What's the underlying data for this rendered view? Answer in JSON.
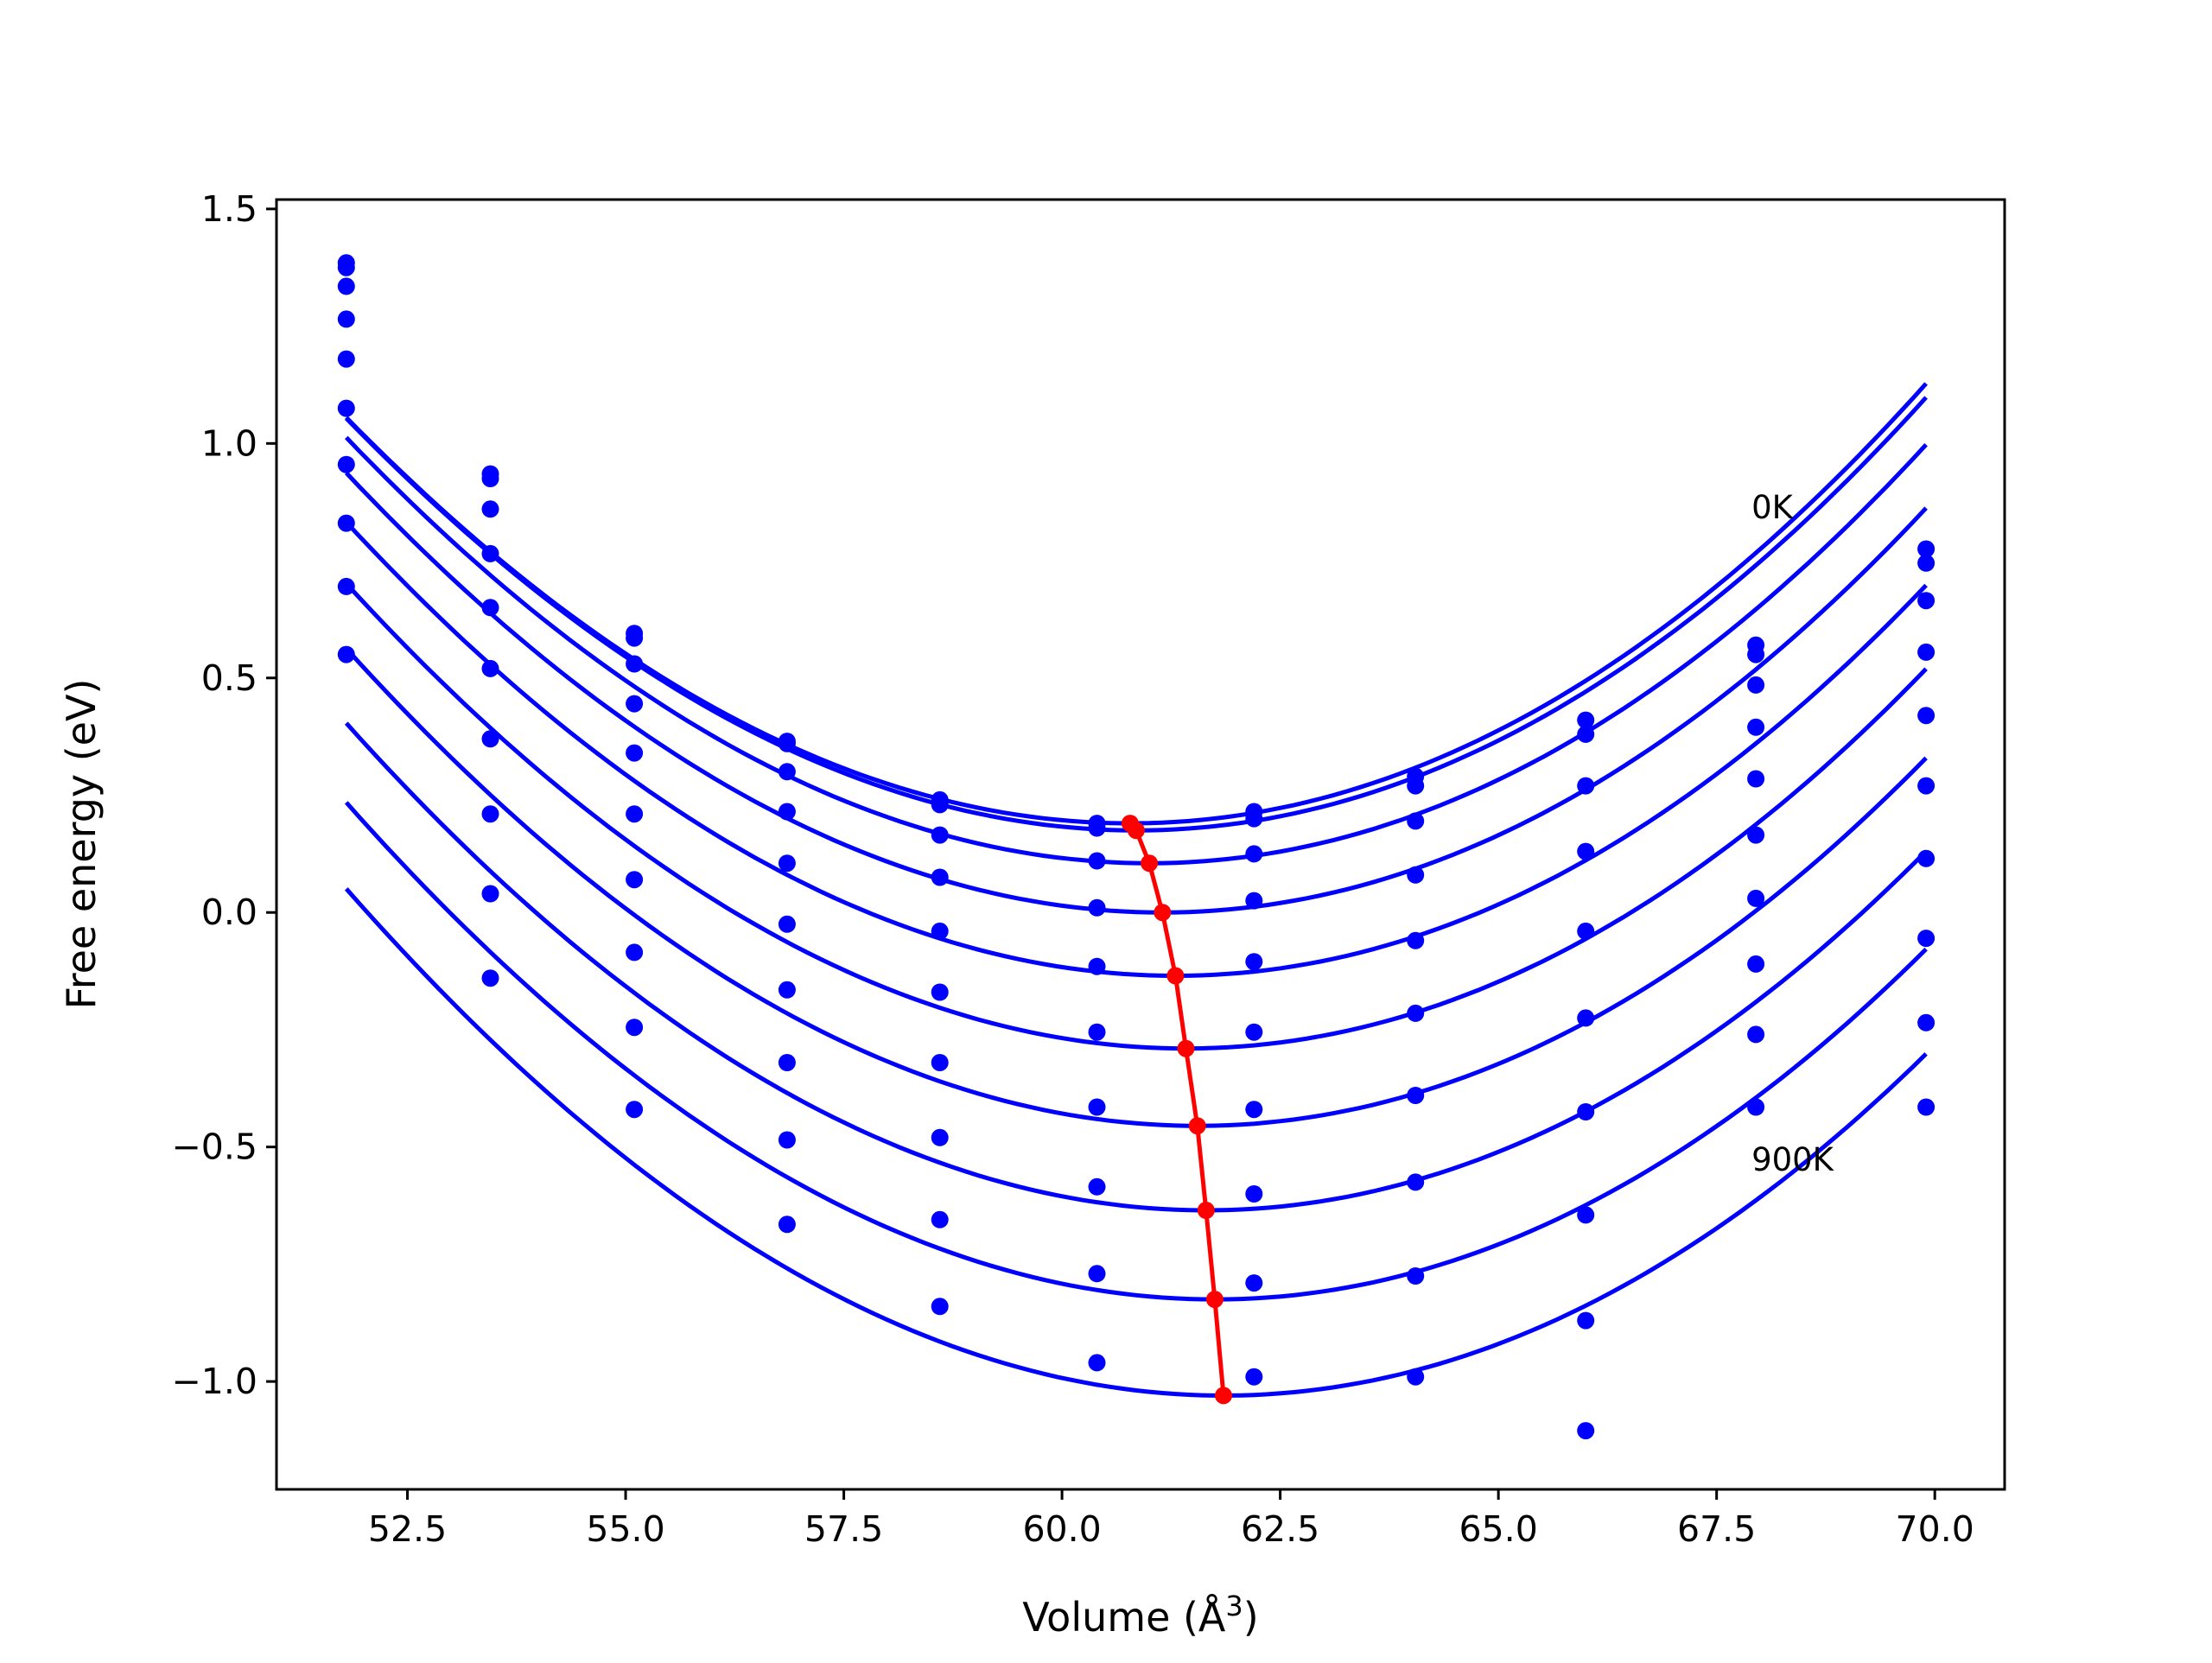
{
  "chart_data": {
    "type": "scatter",
    "title": "",
    "xlabel": "Volume (Å",
    "xlabel_sup": "3",
    "xlabel_close": ")",
    "ylabel": "Free energy (eV)",
    "xlim": [
      51.0,
      70.8
    ],
    "ylim": [
      -1.23,
      1.52
    ],
    "xticks": [
      52.5,
      55.0,
      57.5,
      60.0,
      62.5,
      65.0,
      67.5,
      70.0
    ],
    "xtick_labels": [
      "52.5",
      "55.0",
      "57.5",
      "60.0",
      "62.5",
      "65.0",
      "67.5",
      "70.0"
    ],
    "yticks": [
      1.5,
      1.0,
      0.5,
      0.0,
      -0.5,
      -1.0
    ],
    "ytick_labels": [
      "1.5",
      "1.0",
      "0.5",
      "0.0",
      "−0.5",
      "−1.0"
    ],
    "grid": false,
    "annotations": [
      {
        "text": "0K",
        "x": 67.9,
        "y": 0.84
      },
      {
        "text": "900K",
        "x": 67.9,
        "y": -0.55
      }
    ],
    "x": [
      51.8,
      53.45,
      55.1,
      56.85,
      58.6,
      60.4,
      62.2,
      64.05,
      66.0,
      67.95,
      69.9
    ],
    "series": [
      {
        "values": [
          1.385,
          0.935,
          0.595,
          0.365,
          0.24,
          0.19,
          0.215,
          0.29,
          0.41,
          0.57,
          0.775
        ],
        "fit": {
          "v0": 60.78,
          "e0": 0.19,
          "a": 0.011,
          "b": 3e-05
        }
      },
      {
        "values": [
          1.375,
          0.925,
          0.585,
          0.36,
          0.23,
          0.18,
          0.2,
          0.27,
          0.38,
          0.55,
          0.745
        ],
        "fit": {
          "v0": 60.85,
          "e0": 0.175,
          "a": 0.011,
          "b": 3e-05
        }
      },
      {
        "values": [
          1.335,
          0.86,
          0.53,
          0.3,
          0.165,
          0.11,
          0.125,
          0.195,
          0.27,
          0.485,
          0.665
        ],
        "fit": {
          "v0": 61.0,
          "e0": 0.105,
          "a": 0.011,
          "b": 3e-05
        }
      },
      {
        "values": [
          1.265,
          0.765,
          0.445,
          0.215,
          0.075,
          0.01,
          0.025,
          0.08,
          0.13,
          0.395,
          0.555
        ],
        "fit": {
          "v0": 61.15,
          "e0": 0.0,
          "a": 0.011,
          "b": 3e-05
        }
      },
      {
        "values": [
          1.18,
          0.65,
          0.34,
          0.105,
          -0.04,
          -0.115,
          -0.105,
          -0.06,
          -0.04,
          0.285,
          0.42
        ],
        "fit": {
          "v0": 61.3,
          "e0": -0.135,
          "a": 0.011,
          "b": 3e-05
        }
      },
      {
        "values": [
          1.075,
          0.52,
          0.21,
          -0.025,
          -0.17,
          -0.255,
          -0.255,
          -0.215,
          -0.225,
          0.165,
          0.27
        ],
        "fit": {
          "v0": 61.42,
          "e0": -0.29,
          "a": 0.011,
          "b": 3e-05
        }
      },
      {
        "values": [
          0.955,
          0.37,
          0.07,
          -0.165,
          -0.32,
          -0.415,
          -0.42,
          -0.39,
          -0.425,
          0.03,
          0.115
        ],
        "fit": {
          "v0": 61.55,
          "e0": -0.455,
          "a": 0.011,
          "b": 3e-05
        }
      },
      {
        "values": [
          0.83,
          0.21,
          -0.085,
          -0.32,
          -0.48,
          -0.585,
          -0.6,
          -0.575,
          -0.645,
          -0.11,
          -0.055
        ],
        "fit": {
          "v0": 61.65,
          "e0": -0.635,
          "a": 0.011,
          "b": 3e-05
        }
      },
      {
        "values": [
          0.695,
          0.04,
          -0.245,
          -0.485,
          -0.655,
          -0.77,
          -0.79,
          -0.775,
          -0.87,
          -0.26,
          -0.235
        ],
        "fit": {
          "v0": 61.75,
          "e0": -0.825,
          "a": 0.011,
          "b": 3e-05
        }
      },
      {
        "values": [
          0.55,
          -0.14,
          -0.42,
          -0.665,
          -0.84,
          -0.96,
          -0.99,
          -0.99,
          -1.105,
          -0.415,
          -0.415
        ],
        "fit": {
          "v0": 61.85,
          "e0": -1.03,
          "a": 0.011,
          "b": 3e-05
        }
      }
    ],
    "minima": {
      "x": [
        60.78,
        60.85,
        61.0,
        61.15,
        61.3,
        61.42,
        61.55,
        61.65,
        61.75,
        61.85
      ],
      "y": [
        0.19,
        0.175,
        0.105,
        0.0,
        -0.135,
        -0.29,
        -0.455,
        -0.635,
        -0.825,
        -1.03
      ]
    },
    "colors": {
      "points": "#0000ff",
      "fit": "#0000ff",
      "minima": "#ff0000"
    }
  }
}
